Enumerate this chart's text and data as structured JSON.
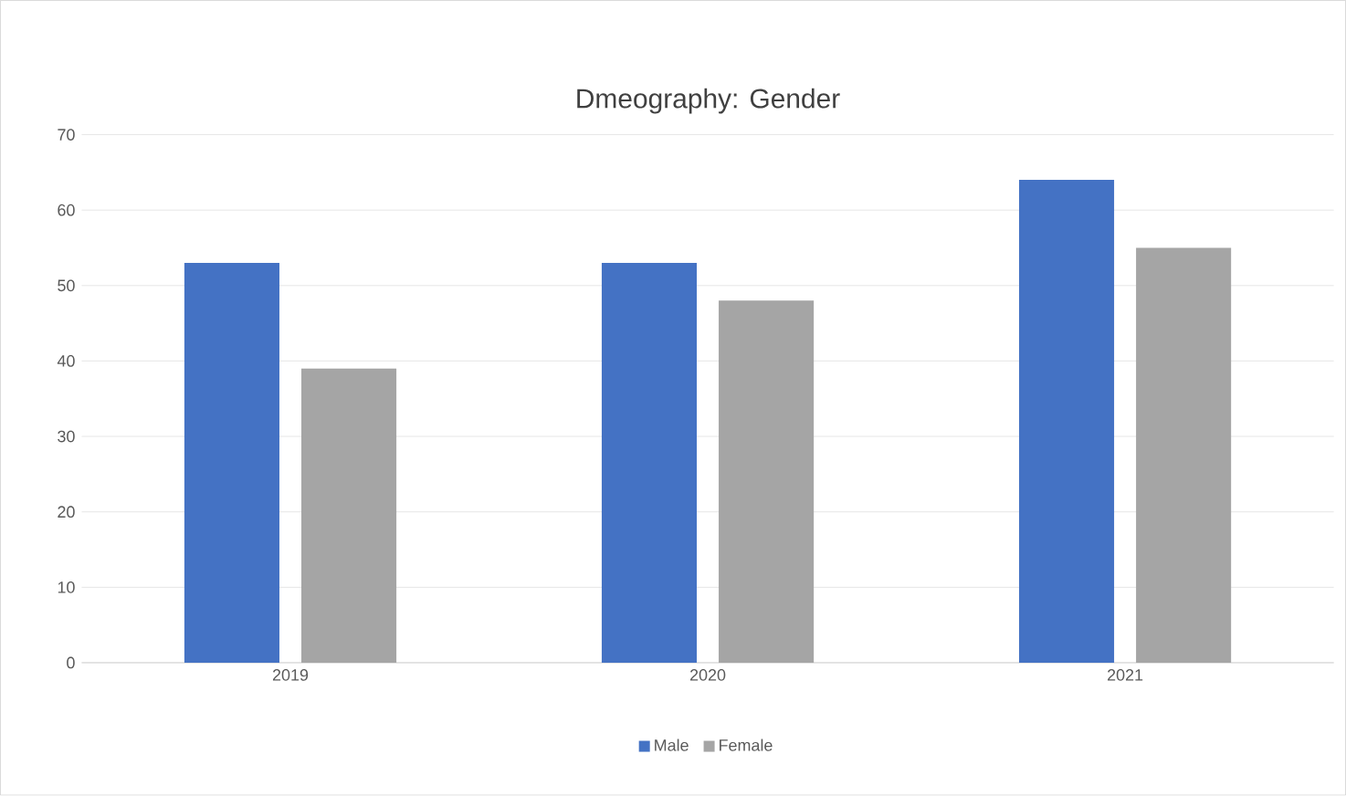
{
  "chart_data": {
    "type": "bar",
    "title": "Dmeography: Gender",
    "categories": [
      "2019",
      "2020",
      "2021"
    ],
    "series": [
      {
        "name": "Male",
        "color": "#4472c4",
        "values": [
          53,
          53,
          64
        ]
      },
      {
        "name": "Female",
        "color": "#a5a5a5",
        "values": [
          39,
          48,
          55
        ]
      }
    ],
    "ylim": [
      0,
      70
    ],
    "yticks": [
      0,
      10,
      20,
      30,
      40,
      50,
      60,
      70
    ],
    "grid": "y",
    "legend": "bottom"
  }
}
